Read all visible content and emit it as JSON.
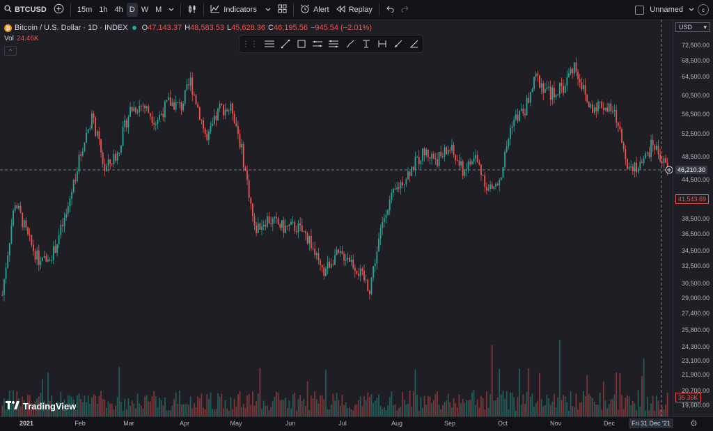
{
  "toolbar": {
    "symbol": "BTCUSD",
    "timeframes": [
      "15m",
      "1h",
      "4h",
      "D",
      "W",
      "M"
    ],
    "active_timeframe": "D",
    "indicators_label": "Indicators",
    "alert_label": "Alert",
    "replay_label": "Replay",
    "layout_name": "Unnamed"
  },
  "legend": {
    "title": "Bitcoin / U.S. Dollar · 1D · INDEX",
    "o_key": "O",
    "o_val": "47,143.37",
    "h_key": "H",
    "h_val": "48,583.53",
    "l_key": "L",
    "l_val": "45,628.36",
    "c_key": "C",
    "c_val": "46,195.56",
    "change": "−945.54 (−2.01%)",
    "vol_label": "Vol",
    "vol_value": "24.46K"
  },
  "price_axis": {
    "currency": "USD",
    "labels": [
      "72,500.00",
      "68,500.00",
      "64,500.00",
      "60,500.00",
      "56,500.00",
      "52,500.00",
      "48,500.00",
      "44,500.00",
      "38,500.00",
      "36,500.00",
      "34,500.00",
      "32,500.00",
      "30,500.00",
      "29,000.00",
      "27,400.00",
      "25,800.00",
      "24,300.00",
      "23,100.00",
      "21,900.00",
      "20,700.00",
      "19,600.00"
    ],
    "crosshair_price": "46,210.30",
    "last_price": "41,543.69",
    "last_volume": "35.36K"
  },
  "time_axis": {
    "labels": [
      "2021",
      "Feb",
      "Mar",
      "Apr",
      "May",
      "Jun",
      "Jul",
      "Aug",
      "Sep",
      "Oct",
      "Nov",
      "Dec"
    ],
    "crosshair_date": "Fri 31 Dec '21"
  },
  "branding": "TradingView",
  "colors": {
    "up": "#26a69a",
    "down": "#ef5350",
    "background": "#1e1e24"
  },
  "chart_data": {
    "type": "candlestick",
    "title": "Bitcoin / U.S. Dollar · 1D · INDEX",
    "x_range": [
      "2021-01-01",
      "2021-12-31"
    ],
    "ylim": [
      19600,
      72500
    ],
    "scale": "log",
    "series": [
      {
        "name": "close",
        "x": [
          "2021-01-01",
          "2021-01-08",
          "2021-01-15",
          "2021-01-22",
          "2021-01-29",
          "2021-02-05",
          "2021-02-12",
          "2021-02-19",
          "2021-02-26",
          "2021-03-05",
          "2021-03-12",
          "2021-03-19",
          "2021-03-26",
          "2021-04-02",
          "2021-04-09",
          "2021-04-14",
          "2021-04-23",
          "2021-04-30",
          "2021-05-07",
          "2021-05-12",
          "2021-05-19",
          "2021-05-26",
          "2021-06-04",
          "2021-06-11",
          "2021-06-18",
          "2021-06-25",
          "2021-07-02",
          "2021-07-09",
          "2021-07-16",
          "2021-07-21",
          "2021-07-30",
          "2021-08-06",
          "2021-08-13",
          "2021-08-20",
          "2021-08-27",
          "2021-09-03",
          "2021-09-10",
          "2021-09-17",
          "2021-09-24",
          "2021-09-30",
          "2021-10-07",
          "2021-10-14",
          "2021-10-20",
          "2021-10-28",
          "2021-11-04",
          "2021-11-10",
          "2021-11-18",
          "2021-11-25",
          "2021-12-02",
          "2021-12-09",
          "2021-12-16",
          "2021-12-23",
          "2021-12-31"
        ],
        "values": [
          29300,
          41000,
          36000,
          32800,
          34300,
          38900,
          47900,
          56000,
          46200,
          49000,
          57500,
          58500,
          55000,
          59000,
          58100,
          63500,
          51000,
          57800,
          57400,
          49500,
          37000,
          38500,
          37300,
          37400,
          35900,
          31600,
          33800,
          33800,
          31500,
          30000,
          40000,
          43500,
          46500,
          49300,
          48000,
          49900,
          46000,
          48300,
          42800,
          43800,
          55000,
          57400,
          64300,
          60700,
          62200,
          67500,
          58000,
          58600,
          56500,
          47500,
          46500,
          50800,
          46200
        ]
      }
    ],
    "volume_last": "35.36K"
  }
}
